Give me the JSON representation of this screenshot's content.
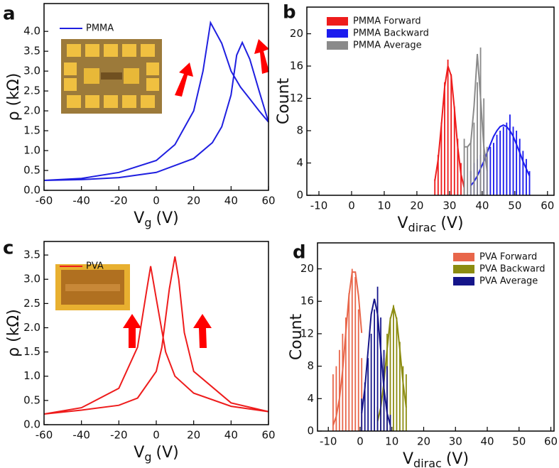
{
  "chart_data": [
    {
      "type": "line",
      "label": "a",
      "xlabel": [
        "V",
        "g",
        "(V)"
      ],
      "ylabel": "ρ (kΩ)",
      "legend": "upper left",
      "xlim": [
        -60,
        60
      ],
      "ylim": [
        0,
        4.7
      ],
      "xticks": [
        -60,
        -40,
        -20,
        0,
        20,
        40,
        60
      ],
      "yticks": [
        {
          "value": 0,
          "label": "0.0"
        },
        {
          "value": 0.5,
          "label": "0.5"
        },
        {
          "value": 1,
          "label": "1.0"
        },
        {
          "value": 1.5,
          "label": "1.5"
        },
        {
          "value": 2,
          "label": "2.0"
        },
        {
          "value": 2.5,
          "label": "2.5"
        },
        {
          "value": 3,
          "label": "3.0"
        },
        {
          "value": 3.5,
          "label": "3.5"
        },
        {
          "value": 4,
          "label": "4.0"
        }
      ],
      "series": [
        {
          "name": "PMMA",
          "color": "#1f1fe0",
          "x": [
            -60,
            -40,
            -20,
            0,
            10,
            20,
            25,
            29,
            35,
            40,
            45,
            50,
            55,
            60,
            55,
            50,
            46,
            43,
            40,
            35,
            30,
            20,
            0,
            -20,
            -40,
            -60
          ],
          "values": [
            0.25,
            0.3,
            0.45,
            0.75,
            1.15,
            2.0,
            3.0,
            4.22,
            3.7,
            3.0,
            2.6,
            2.3,
            2.0,
            1.72,
            2.5,
            3.3,
            3.72,
            3.4,
            2.4,
            1.6,
            1.2,
            0.8,
            0.45,
            0.32,
            0.27,
            0.25
          ]
        }
      ]
    },
    {
      "type": "histogram",
      "label": "b",
      "xlabel": [
        "V",
        "dirac",
        "(V)"
      ],
      "ylabel": "Count",
      "legend": "upper left",
      "xlim": [
        -13.7,
        62
      ],
      "ylim": [
        0,
        23.3
      ],
      "xticks": [
        -10,
        0,
        10,
        20,
        30,
        40,
        50,
        60
      ],
      "yticks": [
        0,
        4,
        8,
        12,
        16,
        20
      ],
      "series": [
        {
          "name": "PMMA Forward",
          "color": "#ee1c1c",
          "bins": [
            25,
            26,
            27,
            28,
            29,
            30,
            31,
            32,
            33,
            34,
            35
          ],
          "values": [
            2,
            5,
            9,
            14,
            16.8,
            15,
            11,
            7,
            4,
            2
          ],
          "fit": {
            "x": [
              25.5,
              26.5,
              27.5,
              28.5,
              29.5,
              30.5,
              31.5,
              32.5,
              33.5,
              34.5
            ],
            "values": [
              1.8,
              4.4,
              8.7,
              13.4,
              16,
              14.8,
              10.7,
              6,
              2.6,
              0.9
            ]
          }
        },
        {
          "name": "PMMA Backward",
          "color": "#1c1cee",
          "bins": [
            36,
            37,
            38,
            39,
            40,
            41,
            42,
            43,
            44,
            45,
            46,
            47,
            48,
            49,
            50,
            51,
            52,
            53,
            54,
            55
          ],
          "values": [
            3,
            4,
            4.5,
            5,
            5,
            5.5,
            6,
            6.5,
            7.5,
            8,
            8.5,
            9,
            10,
            8.5,
            8,
            7,
            5.5,
            4.5,
            3
          ],
          "fit": {
            "x": [
              36.5,
              37.5,
              38.5,
              39.5,
              40.5,
              41.5,
              42.5,
              43.5,
              44.5,
              45.5,
              46.5,
              47.5,
              48.5,
              49.5,
              50.5,
              51.5,
              52.5,
              53.5,
              54.5
            ],
            "values": [
              1.2,
              1.7,
              2.4,
              3.3,
              4.2,
              5.3,
              6.3,
              7.3,
              8,
              8.5,
              8.7,
              8.5,
              8,
              7.3,
              6.3,
              5.3,
              4.2,
              3.3,
              2.4
            ]
          }
        },
        {
          "name": "PMMA Average",
          "color": "#8a8a8a",
          "bins": [
            34,
            35,
            36,
            37,
            38,
            39,
            40,
            41,
            42
          ],
          "values": [
            7,
            6,
            6.5,
            9,
            14,
            18.3,
            12,
            6
          ],
          "fit": {
            "x": [
              34.5,
              35.5,
              36.5,
              37.5,
              38.5,
              39.5,
              40.5,
              41.5
            ],
            "values": [
              6,
              6,
              6.5,
              11,
              17.5,
              12,
              6,
              3
            ]
          }
        }
      ]
    },
    {
      "type": "line",
      "label": "c",
      "xlabel": [
        "V",
        "g",
        "(V)"
      ],
      "ylabel": "ρ (kΩ)",
      "legend": "upper left",
      "xlim": [
        -60,
        60
      ],
      "ylim": [
        0,
        3.78
      ],
      "xticks": [
        -60,
        -40,
        -20,
        0,
        20,
        40,
        60
      ],
      "yticks": [
        {
          "value": 0,
          "label": "0.0"
        },
        {
          "value": 0.5,
          "label": "0.5"
        },
        {
          "value": 1,
          "label": "1.0"
        },
        {
          "value": 1.5,
          "label": "1.5"
        },
        {
          "value": 2,
          "label": "2.0"
        },
        {
          "value": 2.5,
          "label": "2.5"
        },
        {
          "value": 3,
          "label": "3.0"
        },
        {
          "value": 3.5,
          "label": "3.5"
        }
      ],
      "series": [
        {
          "name": "PVA",
          "color": "#ee1c1c",
          "x": [
            -60,
            -40,
            -20,
            -10,
            -5,
            -3,
            0,
            5,
            10,
            20,
            40,
            60,
            40,
            20,
            15,
            12,
            10,
            7,
            3,
            0,
            -10,
            -20,
            -40,
            -60
          ],
          "values": [
            0.22,
            0.35,
            0.75,
            1.6,
            2.8,
            3.27,
            2.6,
            1.5,
            1.0,
            0.65,
            0.38,
            0.27,
            0.45,
            1.1,
            1.9,
            3.0,
            3.47,
            2.8,
            1.6,
            1.1,
            0.55,
            0.4,
            0.3,
            0.22
          ]
        }
      ]
    },
    {
      "type": "histogram",
      "label": "d",
      "xlabel": [
        "V",
        "dirac",
        "(V)"
      ],
      "ylabel": "Count",
      "legend": "upper right",
      "xlim": [
        -13.4,
        61
      ],
      "ylim": [
        0,
        23.2
      ],
      "xticks": [
        -10,
        0,
        10,
        20,
        30,
        40,
        50,
        60
      ],
      "yticks": [
        0,
        4,
        8,
        12,
        16,
        20
      ],
      "series": [
        {
          "name": "PVA Forward",
          "color": "#e8664a",
          "bins": [
            -9,
            -8,
            -7,
            -6,
            -5,
            -4,
            -3,
            -2,
            -1,
            0,
            1
          ],
          "values": [
            7,
            8,
            10,
            12,
            14,
            17,
            20,
            19,
            15,
            9
          ],
          "fit": {
            "x": [
              -8.5,
              -7.5,
              -6.5,
              -5.5,
              -4.5,
              -3.5,
              -2.5,
              -1.5,
              -0.5,
              0.5
            ],
            "values": [
              0.7,
              1.8,
              4,
              7.5,
              12.1,
              16.7,
              19.6,
              19.6,
              16.7,
              12.1
            ]
          }
        },
        {
          "name": "PVA Backward",
          "color": "#8c8c10",
          "bins": [
            5,
            6,
            7,
            8,
            9,
            10,
            11,
            12,
            13,
            14,
            15
          ],
          "values": [
            3,
            6,
            9,
            12,
            14,
            15.5,
            14,
            11,
            8,
            7
          ],
          "fit": {
            "x": [
              5.5,
              6.5,
              7.5,
              8.5,
              9.5,
              10.5,
              11.5,
              12.5,
              13.5,
              14.5
            ],
            "values": [
              1.2,
              2.9,
              6,
              10.1,
              13.8,
              15.3,
              13.8,
              10.1,
              6,
              2.9
            ]
          }
        },
        {
          "name": "PVA Average",
          "color": "#15158a",
          "bins": [
            0,
            1,
            2,
            3,
            4,
            5,
            6,
            7,
            8,
            9,
            10
          ],
          "values": [
            4,
            6,
            9,
            12,
            15,
            17.8,
            14,
            10,
            8,
            2
          ],
          "fit": {
            "x": [
              0.5,
              1.5,
              2.5,
              3.5,
              4.5,
              5.5,
              6.5,
              7.5,
              8.5,
              9.5
            ],
            "values": [
              2.2,
              5.3,
              9.9,
              14.4,
              16.3,
              14.4,
              9.9,
              5.3,
              2.2,
              0.7
            ]
          }
        }
      ]
    }
  ]
}
